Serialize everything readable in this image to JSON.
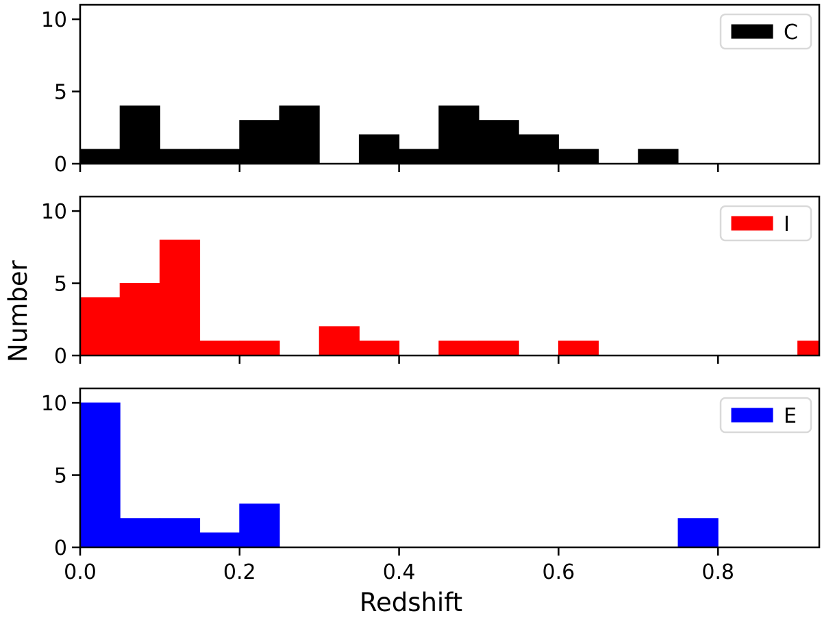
{
  "figure": {
    "background": "#ffffff",
    "axis_color": "#000000"
  },
  "chart_data": {
    "type": "bar",
    "subtype": "histogram-stacked-subplots",
    "xlabel": "Redshift",
    "ylabel": "Number",
    "grid": false,
    "bin_start": 0.0,
    "bin_width": 0.05,
    "bin_edges": [
      0.0,
      0.05,
      0.1,
      0.15,
      0.2,
      0.25,
      0.3,
      0.35,
      0.4,
      0.45,
      0.5,
      0.55,
      0.6,
      0.65,
      0.7,
      0.75,
      0.8,
      0.85,
      0.9,
      0.95
    ],
    "xlim": [
      0.0,
      0.927
    ],
    "ylim": [
      0,
      11
    ],
    "xticks": [
      0.0,
      0.2,
      0.4,
      0.6,
      0.8
    ],
    "xtick_labels": [
      "0.0",
      "0.2",
      "0.4",
      "0.6",
      "0.8"
    ],
    "yticks": [
      0,
      5,
      10
    ],
    "ytick_labels": [
      "0",
      "5",
      "10"
    ],
    "legend_position": "upper right",
    "panels": [
      {
        "legend_label": "C",
        "color": "#000000",
        "counts": [
          1,
          4,
          1,
          1,
          3,
          4,
          0,
          2,
          1,
          4,
          3,
          2,
          1,
          0,
          1,
          0,
          0,
          0,
          0
        ]
      },
      {
        "legend_label": "I",
        "color": "#ff0000",
        "counts": [
          4,
          5,
          8,
          1,
          1,
          0,
          2,
          1,
          0,
          1,
          1,
          0,
          1,
          0,
          0,
          0,
          0,
          0,
          1
        ]
      },
      {
        "legend_label": "E",
        "color": "#0000ff",
        "counts": [
          10,
          2,
          2,
          1,
          3,
          0,
          0,
          0,
          0,
          0,
          0,
          0,
          0,
          0,
          0,
          2,
          0,
          0,
          0
        ]
      }
    ]
  }
}
